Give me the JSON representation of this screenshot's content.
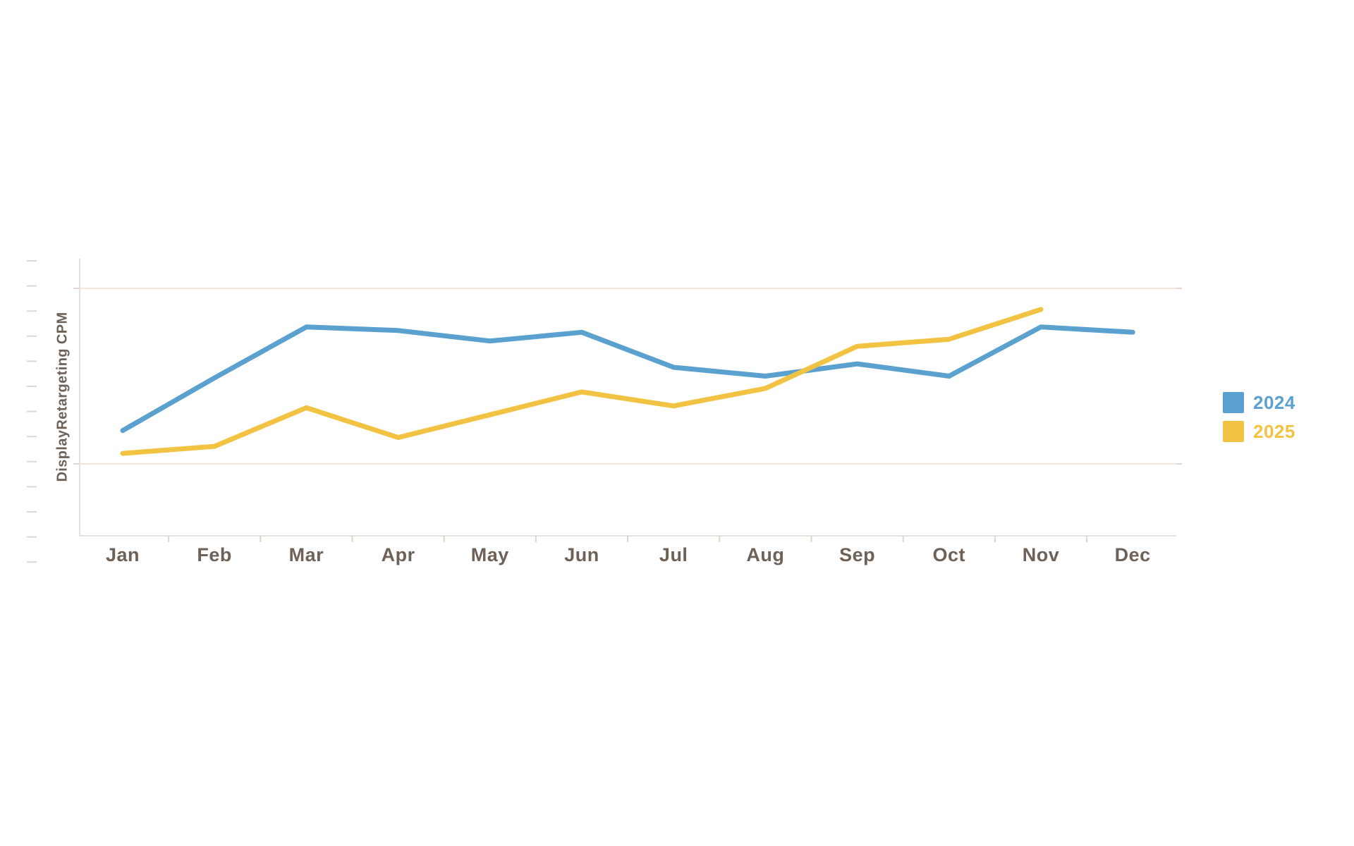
{
  "page": {
    "background": "#ffffff"
  },
  "colors": {
    "text": "#6E6157",
    "axis_line": "#E7DFDA",
    "gridline": "#F0E5DF",
    "gridline_end_tick": "#E2D6CE",
    "month_boundary_tick": "#DDD4CE",
    "edge_tick": "#D9DAD6",
    "series_2024": "#5AA1CF",
    "series_2025": "#F2C342"
  },
  "chart_data": {
    "type": "line",
    "title": "",
    "xlabel": "",
    "ylabel": "DisplayRetargeting CPM",
    "categories": [
      "Jan",
      "Feb",
      "Mar",
      "Apr",
      "May",
      "Jun",
      "Jul",
      "Aug",
      "Sep",
      "Oct",
      "Nov",
      "Dec"
    ],
    "series": [
      {
        "name": "2024",
        "color": "#5AA1CF",
        "values": [
          19,
          49,
          78,
          76,
          70,
          75,
          55,
          50,
          57,
          50,
          78,
          75
        ]
      },
      {
        "name": "2025",
        "color": "#F2C342",
        "values": [
          6,
          10,
          32,
          15,
          28,
          41,
          33,
          43,
          67,
          71,
          88,
          null
        ]
      }
    ],
    "value_scale": {
      "note": "No numeric y-axis labels are visible; values are normalized so the lower gridline = 0 and the upper gridline = 100",
      "ylim": [
        -19,
        141
      ],
      "gridlines_at": [
        0,
        100
      ]
    },
    "grid": "horizontal",
    "legend_position": "right"
  },
  "legend": {
    "items": [
      {
        "label": "2024",
        "color": "#5AA1CF"
      },
      {
        "label": "2025",
        "color": "#F2C342"
      }
    ]
  }
}
